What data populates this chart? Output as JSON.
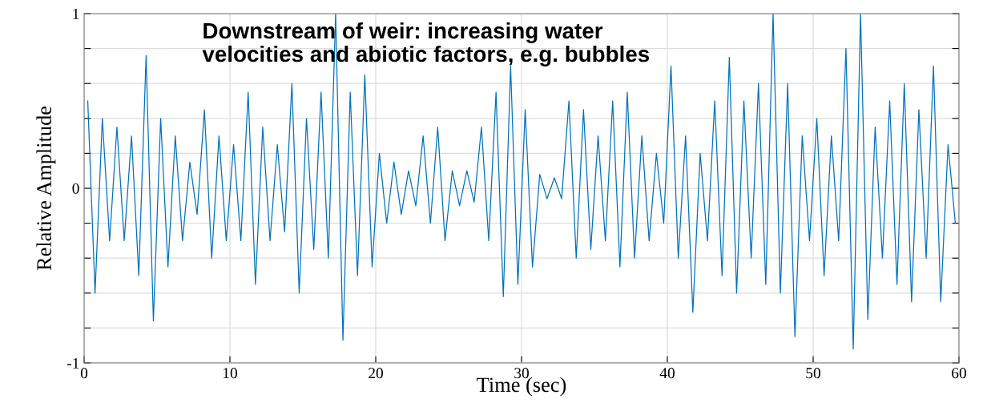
{
  "chart_data": {
    "type": "line",
    "xlabel": "Time (sec)",
    "ylabel": "Relative Amplitude",
    "annotations": [
      "Downstream of weir: increasing water\nvelocities and abiotic factors, e.g. bubbles"
    ],
    "x": [
      0.25,
      0.75,
      1.25,
      1.75,
      2.25,
      2.75,
      3.25,
      3.75,
      4.25,
      4.75,
      5.25,
      5.75,
      6.25,
      6.75,
      7.25,
      7.75,
      8.25,
      8.75,
      9.25,
      9.75,
      10.25,
      10.75,
      11.25,
      11.75,
      12.25,
      12.75,
      13.25,
      13.75,
      14.25,
      14.75,
      15.25,
      15.75,
      16.25,
      16.75,
      17.25,
      17.75,
      18.25,
      18.75,
      19.25,
      19.75,
      20.25,
      20.75,
      21.25,
      21.75,
      22.25,
      22.75,
      23.25,
      23.75,
      24.25,
      24.75,
      25.25,
      25.75,
      26.25,
      26.75,
      27.25,
      27.75,
      28.25,
      28.75,
      29.25,
      29.75,
      30.25,
      30.75,
      31.25,
      31.75,
      32.25,
      32.75,
      33.25,
      33.75,
      34.25,
      34.75,
      35.25,
      35.75,
      36.25,
      36.75,
      37.25,
      37.75,
      38.25,
      38.75,
      39.25,
      39.75,
      40.25,
      40.75,
      41.25,
      41.75,
      42.25,
      42.75,
      43.25,
      43.75,
      44.25,
      44.75,
      45.25,
      45.75,
      46.25,
      46.75,
      47.25,
      47.75,
      48.25,
      48.75,
      49.25,
      49.75,
      50.25,
      50.75,
      51.25,
      51.75,
      52.25,
      52.75,
      53.25,
      53.75,
      54.25,
      54.75,
      55.25,
      55.75,
      56.25,
      56.75,
      57.25,
      57.75,
      58.25,
      58.75,
      59.25,
      59.75
    ],
    "series": [
      {
        "color": "#0072bd",
        "values": [
          0.5,
          -0.6,
          0.4,
          -0.3,
          0.35,
          -0.3,
          0.3,
          -0.5,
          0.76,
          -0.76,
          0.4,
          -0.45,
          0.3,
          -0.3,
          0.15,
          -0.15,
          0.45,
          -0.4,
          0.3,
          -0.3,
          0.25,
          -0.3,
          0.55,
          -0.55,
          0.35,
          -0.3,
          0.25,
          -0.25,
          0.6,
          -0.6,
          0.4,
          -0.35,
          0.55,
          -0.4,
          1.0,
          -0.87,
          0.55,
          -0.5,
          0.65,
          -0.45,
          0.2,
          -0.2,
          0.15,
          -0.15,
          0.1,
          -0.1,
          0.3,
          -0.2,
          0.35,
          -0.3,
          0.1,
          -0.1,
          0.1,
          -0.08,
          0.35,
          -0.3,
          0.55,
          -0.62,
          0.7,
          -0.55,
          0.45,
          -0.45,
          0.08,
          -0.06,
          0.06,
          -0.06,
          0.5,
          -0.4,
          0.45,
          -0.35,
          0.3,
          -0.3,
          0.5,
          -0.45,
          0.55,
          -0.4,
          0.3,
          -0.3,
          0.2,
          -0.2,
          0.7,
          -0.4,
          0.3,
          -0.71,
          0.2,
          -0.3,
          0.5,
          -0.5,
          0.75,
          -0.6,
          0.5,
          -0.4,
          0.6,
          -0.55,
          1.0,
          -0.6,
          0.6,
          -0.85,
          0.3,
          -0.3,
          0.4,
          -0.5,
          0.3,
          -0.3,
          0.8,
          -0.92,
          1.0,
          -0.75,
          0.35,
          -0.4,
          0.5,
          -0.55,
          0.6,
          -0.65,
          0.45,
          -0.4,
          0.7,
          -0.65,
          0.25,
          -0.2
        ]
      }
    ],
    "xlim": [
      0,
      60
    ],
    "xticks": [
      0,
      10,
      20,
      30,
      40,
      50,
      60
    ],
    "ylim": [
      -1,
      1
    ],
    "yticks": [
      -1,
      {
        "value": -0.8,
        "label": null
      },
      {
        "value": -0.6,
        "label": null
      },
      {
        "value": -0.4,
        "label": null
      },
      {
        "value": -0.2,
        "label": null
      },
      0,
      {
        "value": 0.2,
        "label": null
      },
      {
        "value": 0.4,
        "label": null
      },
      {
        "value": 0.6,
        "label": null
      },
      {
        "value": 0.8,
        "label": null
      },
      1
    ],
    "grid": true,
    "marker": "none",
    "line_style": "solid"
  }
}
